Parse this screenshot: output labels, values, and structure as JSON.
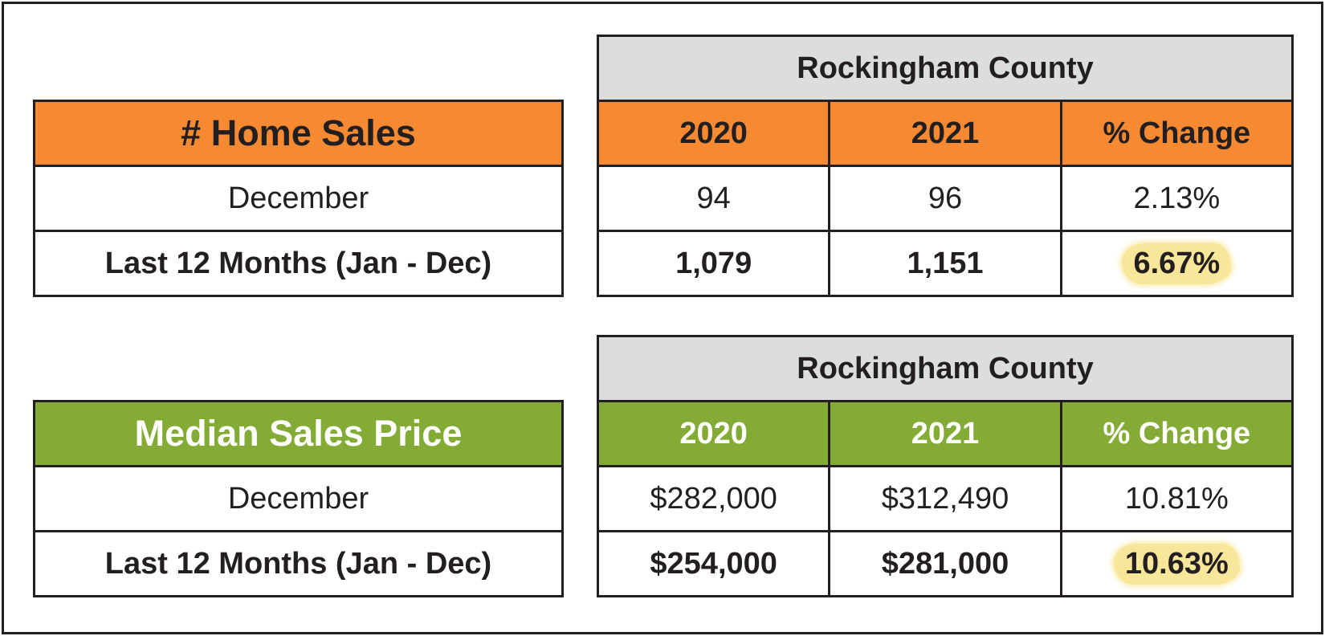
{
  "home_sales": {
    "title": "# Home Sales",
    "county": "Rockingham County",
    "columns": [
      "2020",
      "2021",
      "% Change"
    ],
    "rows": [
      {
        "label": "December",
        "v2020": "94",
        "v2021": "96",
        "change": "2.13%"
      },
      {
        "label": "Last 12 Months (Jan - Dec)",
        "v2020": "1,079",
        "v2021": "1,151",
        "change": "6.67%"
      }
    ]
  },
  "median_price": {
    "title": "Median Sales Price",
    "county": "Rockingham County",
    "columns": [
      "2020",
      "2021",
      "% Change"
    ],
    "rows": [
      {
        "label": "December",
        "v2020": "$282,000",
        "v2021": "$312,490",
        "change": "10.81%"
      },
      {
        "label": "Last 12 Months (Jan - Dec)",
        "v2020": "$254,000",
        "v2021": "$281,000",
        "change": "10.63%"
      }
    ]
  },
  "colors": {
    "orange_header": "#f58a33",
    "green_header": "#84ab36",
    "gray_header": "#dcdddf",
    "highlight": "#f8e79a",
    "border": "#231f20"
  }
}
